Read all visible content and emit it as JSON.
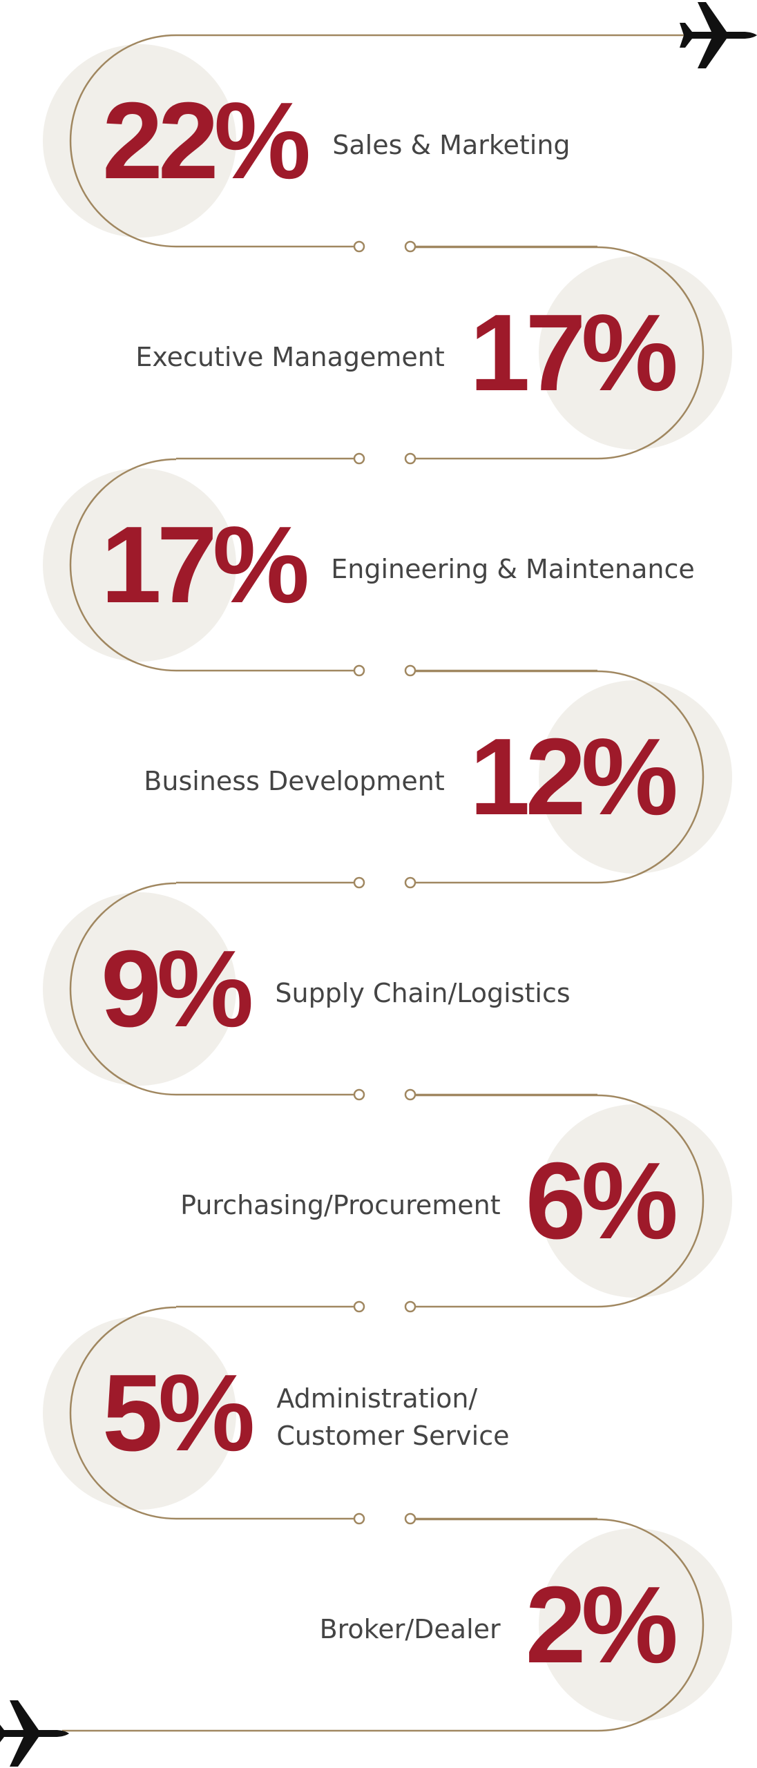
{
  "colors": {
    "accent": "#9e1a2a",
    "label": "#444444",
    "path": "#a08760",
    "circle": "#f1efea",
    "plane": "#111111"
  },
  "icons": {
    "start": "airplane-icon",
    "end": "airplane-icon"
  },
  "chart_data": {
    "type": "bar",
    "categories": [
      "Sales & Marketing",
      "Executive Management",
      "Engineering & Maintenance",
      "Business Development",
      "Supply Chain/Logistics",
      "Purchasing/Procurement",
      "Administration/\nCustomer Service",
      "Broker/Dealer"
    ],
    "values": [
      22,
      17,
      17,
      12,
      9,
      6,
      5,
      2
    ],
    "value_labels": [
      "22%",
      "17%",
      "17%",
      "12%",
      "9%",
      "6%",
      "5%",
      "2%"
    ],
    "title": "",
    "xlabel": "",
    "ylabel": "",
    "layout": "serpentine path, alternating sides"
  }
}
